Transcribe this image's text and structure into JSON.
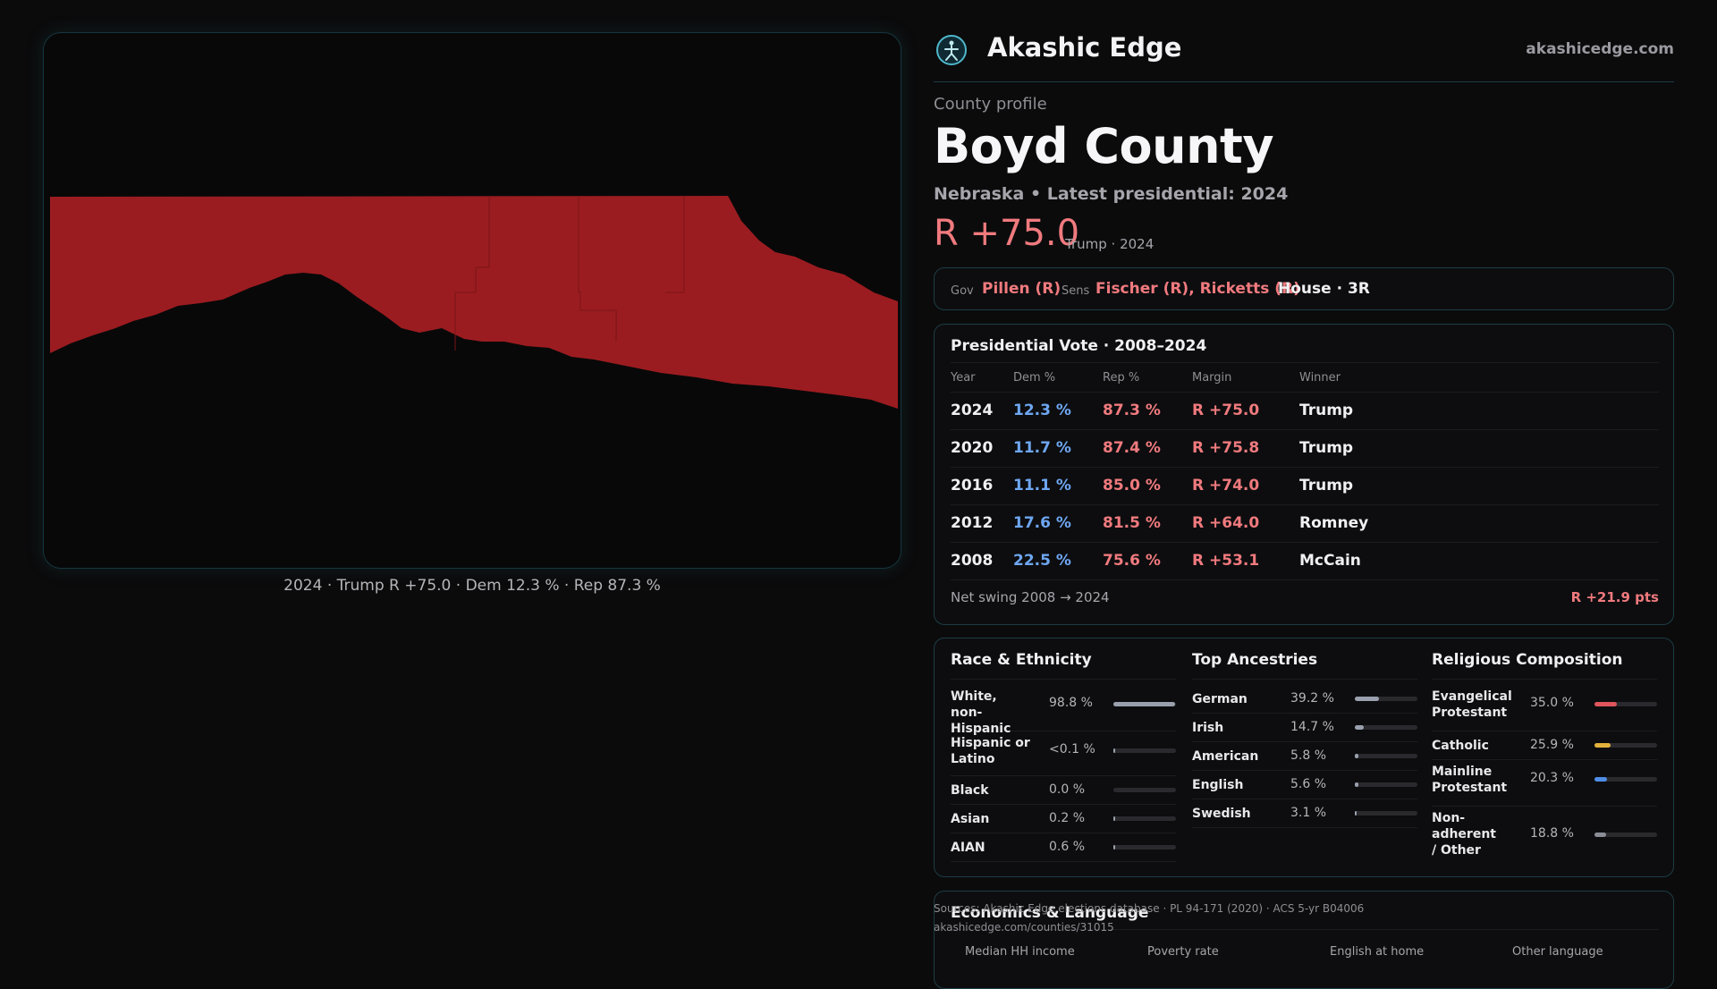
{
  "map": {
    "caption": "2024 · Trump R +75.0 · Dem 12.3 % · Rep 87.3 %",
    "fill_color": "#9b1c20"
  },
  "brand": {
    "name": "Akashic Edge",
    "url": "akashicedge.com",
    "logo_icon": "akashic-edge-logo-icon"
  },
  "county": {
    "kicker": "County profile",
    "name": "Boyd County",
    "subtitle": "Nebraska • Latest presidential: 2024",
    "margin": "R +75.0",
    "margin_note": "Trump · 2024"
  },
  "officials": {
    "gov_label": "Gov",
    "gov": "Pillen (R)",
    "sens_label": "Sens",
    "sens": "Fischer (R), Ricketts (R)",
    "house": "House · 3R"
  },
  "presidential": {
    "title": "Presidential Vote · 2008–2024",
    "columns": [
      "Year",
      "Dem %",
      "Rep %",
      "Margin",
      "Winner"
    ],
    "rows": [
      {
        "year": "2024",
        "dem": "12.3 %",
        "rep": "87.3 %",
        "margin": "R +75.0",
        "winner": "Trump"
      },
      {
        "year": "2020",
        "dem": "11.7 %",
        "rep": "87.4 %",
        "margin": "R +75.8",
        "winner": "Trump"
      },
      {
        "year": "2016",
        "dem": "11.1 %",
        "rep": "85.0 %",
        "margin": "R +74.0",
        "winner": "Trump"
      },
      {
        "year": "2012",
        "dem": "17.6 %",
        "rep": "81.5 %",
        "margin": "R +64.0",
        "winner": "Romney"
      },
      {
        "year": "2008",
        "dem": "22.5 %",
        "rep": "75.6 %",
        "margin": "R +53.1",
        "winner": "McCain"
      }
    ],
    "swing_label": "Net swing 2008 → 2024",
    "swing_value": "R +21.9 pts"
  },
  "race": {
    "title": "Race & Ethnicity",
    "rows": [
      {
        "label": "White, non-Hispanic",
        "value": "98.8 %",
        "pct": 98.8,
        "color": "#9aa0ad"
      },
      {
        "label": "Hispanic or Latino",
        "value": "<0.1 %",
        "pct": 0.1,
        "color": "#9aa0ad"
      },
      {
        "label": "Black",
        "value": "0.0 %",
        "pct": 0.0,
        "color": "#9aa0ad"
      },
      {
        "label": "Asian",
        "value": "0.2 %",
        "pct": 0.2,
        "color": "#9aa0ad"
      },
      {
        "label": "AIAN",
        "value": "0.6 %",
        "pct": 0.6,
        "color": "#9aa0ad"
      }
    ]
  },
  "ancestry": {
    "title": "Top Ancestries",
    "rows": [
      {
        "label": "German",
        "value": "39.2 %",
        "pct": 39.2,
        "color": "#9aa0ad"
      },
      {
        "label": "Irish",
        "value": "14.7 %",
        "pct": 14.7,
        "color": "#9aa0ad"
      },
      {
        "label": "American",
        "value": "5.8 %",
        "pct": 5.8,
        "color": "#9aa0ad"
      },
      {
        "label": "English",
        "value": "5.6 %",
        "pct": 5.6,
        "color": "#9aa0ad"
      },
      {
        "label": "Swedish",
        "value": "3.1 %",
        "pct": 3.1,
        "color": "#9aa0ad"
      }
    ]
  },
  "religion": {
    "title": "Religious Composition",
    "rows": [
      {
        "label": "Evangelical Protestant",
        "value": "35.0 %",
        "pct": 35.0,
        "color": "#e0555c"
      },
      {
        "label": "Catholic",
        "value": "25.9 %",
        "pct": 25.9,
        "color": "#e3b23c"
      },
      {
        "label": "Mainline Protestant",
        "value": "20.3 %",
        "pct": 20.3,
        "color": "#4f8ee8"
      },
      {
        "label": "Non-adherent / Other",
        "value": "18.8 %",
        "pct": 18.8,
        "color": "#8a8d96"
      }
    ]
  },
  "economics": {
    "title": "Economics & Language",
    "columns": [
      "Median HH income",
      "Poverty rate",
      "English at home",
      "Other language"
    ]
  },
  "sources": {
    "line1": "Sources: Akashic Edge elections database · PL 94-171 (2020) · ACS 5-yr B04006",
    "line2": "akashicedge.com/counties/31015"
  }
}
